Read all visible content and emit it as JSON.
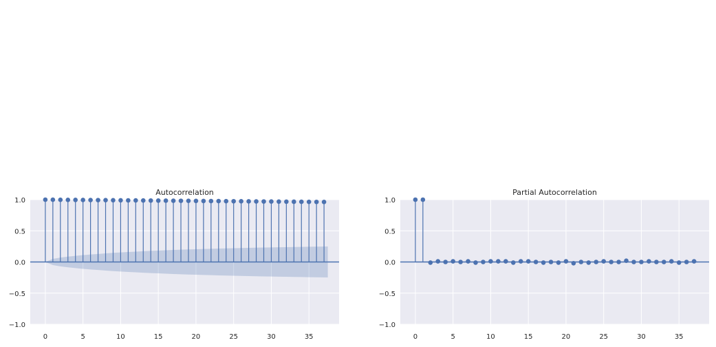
{
  "chart_data": [
    {
      "type": "stem",
      "title": "Autocorrelation",
      "xlabel": "",
      "ylabel": "",
      "xlim": [
        -2,
        39
      ],
      "ylim": [
        -1.0,
        1.0
      ],
      "xticks": [
        "0",
        "5",
        "10",
        "15",
        "20",
        "25",
        "30",
        "35"
      ],
      "yticks": [
        "1.0",
        "0.5",
        "0.0",
        "−0.5",
        "−1.0"
      ],
      "grid": true,
      "lags": [
        0,
        1,
        2,
        3,
        4,
        5,
        6,
        7,
        8,
        9,
        10,
        11,
        12,
        13,
        14,
        15,
        16,
        17,
        18,
        19,
        20,
        21,
        22,
        23,
        24,
        25,
        26,
        27,
        28,
        29,
        30,
        31,
        32,
        33,
        34,
        35,
        36,
        37
      ],
      "values": [
        1.0,
        0.999,
        0.998,
        0.997,
        0.996,
        0.995,
        0.994,
        0.993,
        0.992,
        0.991,
        0.99,
        0.989,
        0.988,
        0.987,
        0.986,
        0.985,
        0.984,
        0.983,
        0.982,
        0.981,
        0.98,
        0.979,
        0.978,
        0.977,
        0.976,
        0.975,
        0.974,
        0.973,
        0.972,
        0.971,
        0.97,
        0.969,
        0.968,
        0.967,
        0.966,
        0.965,
        0.964,
        0.963
      ],
      "confidence_band_half_width": [
        0.0,
        0.05,
        0.07,
        0.085,
        0.098,
        0.11,
        0.12,
        0.129,
        0.138,
        0.146,
        0.153,
        0.16,
        0.166,
        0.172,
        0.178,
        0.183,
        0.188,
        0.193,
        0.197,
        0.201,
        0.205,
        0.209,
        0.212,
        0.215,
        0.218,
        0.221,
        0.224,
        0.227,
        0.229,
        0.232,
        0.234,
        0.236,
        0.238,
        0.24,
        0.242,
        0.244,
        0.246,
        0.248
      ],
      "colors": {
        "stem": "#4c72b0",
        "band": "#4c72b0",
        "background": "#eaeaf2",
        "grid": "#ffffff"
      }
    },
    {
      "type": "stem",
      "title": "Partial Autocorrelation",
      "xlabel": "",
      "ylabel": "",
      "xlim": [
        -2,
        39
      ],
      "ylim": [
        -1.0,
        1.0
      ],
      "xticks": [
        "0",
        "5",
        "10",
        "15",
        "20",
        "25",
        "30",
        "35"
      ],
      "yticks": [
        "1.0",
        "0.5",
        "0.0",
        "−0.5",
        "−1.0"
      ],
      "grid": true,
      "lags": [
        0,
        1,
        2,
        3,
        4,
        5,
        6,
        7,
        8,
        9,
        10,
        11,
        12,
        13,
        14,
        15,
        16,
        17,
        18,
        19,
        20,
        21,
        22,
        23,
        24,
        25,
        26,
        27,
        28,
        29,
        30,
        31,
        32,
        33,
        34,
        35,
        36,
        37
      ],
      "values": [
        1.0,
        1.0,
        -0.01,
        0.01,
        0.0,
        0.01,
        0.0,
        0.01,
        -0.01,
        0.0,
        0.01,
        0.01,
        0.01,
        -0.01,
        0.01,
        0.01,
        0.0,
        -0.01,
        0.0,
        -0.01,
        0.01,
        -0.02,
        0.0,
        -0.01,
        0.0,
        0.01,
        0.0,
        0.0,
        0.02,
        0.0,
        0.0,
        0.01,
        0.0,
        0.0,
        0.01,
        -0.01,
        0.0,
        0.01
      ],
      "confidence_band_half_width": [
        0.01,
        0.01,
        0.01,
        0.01,
        0.01,
        0.01,
        0.01,
        0.01,
        0.01,
        0.01,
        0.01,
        0.01,
        0.01,
        0.01,
        0.01,
        0.01,
        0.01,
        0.01,
        0.01,
        0.01,
        0.01,
        0.01,
        0.01,
        0.01,
        0.01,
        0.01,
        0.01,
        0.01,
        0.01,
        0.01,
        0.01,
        0.01,
        0.01,
        0.01,
        0.01,
        0.01,
        0.01,
        0.01
      ],
      "colors": {
        "stem": "#4c72b0",
        "band": "#4c72b0",
        "background": "#eaeaf2",
        "grid": "#ffffff"
      }
    }
  ]
}
